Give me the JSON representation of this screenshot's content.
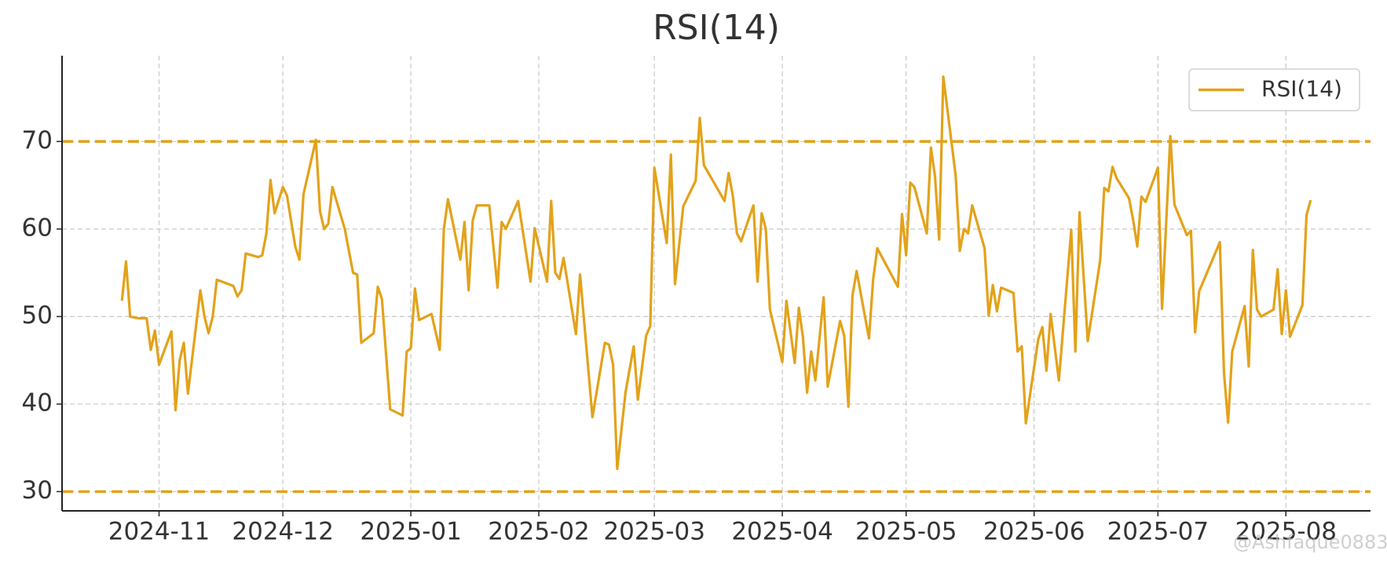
{
  "chart_data": {
    "type": "line",
    "title": "RSI(14)",
    "x": [
      -9,
      -8,
      -7,
      -5,
      -3,
      -2,
      -1,
      0,
      3,
      4,
      5,
      6,
      7,
      10,
      11,
      12,
      13,
      14,
      18,
      19,
      20,
      21,
      24,
      25,
      26,
      27,
      28,
      30,
      31,
      33,
      34,
      35,
      38,
      39,
      40,
      41,
      42,
      45,
      47,
      48,
      49,
      52,
      53,
      54,
      56,
      59,
      60,
      61,
      62,
      63,
      66,
      68,
      69,
      70,
      73,
      74,
      75,
      76,
      77,
      80,
      82,
      83,
      84,
      87,
      90,
      91,
      94,
      95,
      96,
      97,
      98,
      101,
      102,
      105,
      108,
      109,
      110,
      111,
      113,
      115,
      116,
      118,
      119,
      120,
      123,
      124,
      125,
      127,
      130,
      131,
      132,
      137,
      138,
      139,
      140,
      141,
      144,
      145,
      146,
      147,
      148,
      151,
      152,
      154,
      155,
      156,
      157,
      158,
      159,
      161,
      162,
      165,
      166,
      167,
      168,
      169,
      172,
      173,
      174,
      179,
      180,
      181,
      182,
      183,
      186,
      187,
      188,
      189,
      190,
      193,
      194,
      195,
      196,
      197,
      200,
      201,
      202,
      203,
      204,
      207,
      208,
      209,
      210,
      213,
      214,
      215,
      216,
      218,
      221,
      222,
      223,
      225,
      228,
      229,
      230,
      231,
      232,
      235,
      236,
      237,
      238,
      239,
      242,
      243,
      245,
      246,
      249,
      250,
      251,
      252,
      257,
      258,
      259,
      260,
      263,
      264,
      265,
      266,
      267,
      270,
      271,
      272,
      273,
      274,
      277,
      278,
      279
    ],
    "series": [
      {
        "name": "RSI(14)",
        "color": "#e3a21a",
        "values": [
          51.8,
          56.3,
          50,
          49.8,
          49.8,
          46.2,
          48.4,
          44.5,
          48.3,
          39.3,
          45,
          47,
          41.2,
          53,
          50,
          48.1,
          50,
          54.2,
          53.5,
          52.3,
          53,
          57.2,
          56.8,
          57,
          59.5,
          65.6,
          61.8,
          64.8,
          63.8,
          58,
          56.5,
          64,
          70.2,
          62,
          60,
          60.6,
          64.8,
          60,
          55,
          54.8,
          47,
          48.1,
          53.4,
          52,
          39.4,
          38.7,
          46,
          46.4,
          53.2,
          49.6,
          50.3,
          46.2,
          60,
          63.4,
          56.5,
          60.8,
          53,
          61,
          62.7,
          62.7,
          53.3,
          60.8,
          60,
          63.2,
          54,
          60.1,
          54,
          63.2,
          55,
          54.3,
          56.7,
          48,
          54.8,
          38.5,
          47,
          46.8,
          44.5,
          32.6,
          41.3,
          46.6,
          40.5,
          47.8,
          48.9,
          67,
          58.4,
          68.5,
          53.7,
          62.6,
          65.5,
          72.7,
          67.3,
          63.2,
          66.4,
          63.8,
          59.5,
          58.6,
          62.7,
          54,
          61.8,
          60,
          50.8,
          44.8,
          51.8,
          44.7,
          51,
          47.6,
          41.3,
          46,
          42.7,
          52.2,
          42,
          49.5,
          47.8,
          39.7,
          52.4,
          55.2,
          47.5,
          54.2,
          57.8,
          53.4,
          61.7,
          57,
          65.3,
          64.8,
          59.5,
          69.3,
          66,
          58.8,
          77.4,
          66.1,
          57.5,
          60,
          59.5,
          62.7,
          57.8,
          50.1,
          53.6,
          50.6,
          53.3,
          52.7,
          46,
          46.6,
          37.8,
          47.4,
          48.8,
          43.8,
          50.3,
          42.7,
          59.9,
          46,
          61.9,
          47.2,
          56.4,
          64.7,
          64.3,
          67.1,
          65.8,
          63.5,
          61,
          58,
          63.7,
          63.1,
          67,
          50.9,
          70.6,
          62.8,
          59.3,
          59.8,
          48.2,
          52.9,
          58.5,
          43.6,
          37.9,
          46,
          51.2,
          44.3,
          57.6,
          50.8,
          50,
          50.8,
          55.4,
          48,
          53,
          47.7,
          51.3,
          61.6,
          63.3
        ]
      }
    ],
    "hlines": [
      70,
      30
    ],
    "xlim": [
      -23.5,
      293.5
    ],
    "ylim": [
      27.8,
      79.8
    ],
    "xticks": [
      {
        "value": 0,
        "label": "2024-11"
      },
      {
        "value": 30,
        "label": "2024-12"
      },
      {
        "value": 61,
        "label": "2025-01"
      },
      {
        "value": 92,
        "label": "2025-02"
      },
      {
        "value": 120,
        "label": "2025-03"
      },
      {
        "value": 151,
        "label": "2025-04"
      },
      {
        "value": 181,
        "label": "2025-05"
      },
      {
        "value": 212,
        "label": "2025-06"
      },
      {
        "value": 242,
        "label": "2025-07"
      },
      {
        "value": 273,
        "label": "2025-08"
      }
    ],
    "yticks": [
      30,
      40,
      50,
      60,
      70
    ],
    "grid": true,
    "legend": "upper right",
    "watermark": "@Ashfaque0883"
  }
}
